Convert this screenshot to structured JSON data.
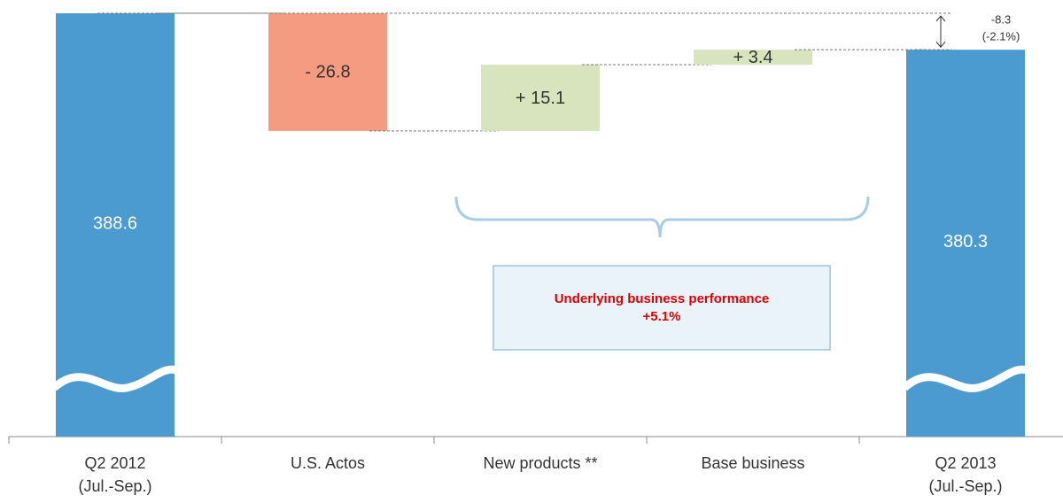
{
  "chart_data": {
    "type": "waterfall",
    "categories": [
      "Q2 2012\n(Jul.-Sep.)",
      "U.S. Actos",
      "New products **",
      "Base business",
      "Q2 2013\n(Jul.-Sep.)"
    ],
    "measures": [
      "total",
      "relative",
      "relative",
      "relative",
      "total"
    ],
    "values": [
      388.6,
      -26.8,
      15.1,
      3.4,
      380.3
    ],
    "value_labels": [
      "388.6",
      "- 26.8",
      "+ 15.1",
      "+ 3.4",
      "380.3"
    ],
    "colors": {
      "total": "#4b9bd0",
      "decrease": "#f49b82",
      "increase": "#d7e4bd"
    },
    "annotations": [
      "-8.3",
      "(-2.1%)"
    ],
    "callout": {
      "title": "Underlying business performance",
      "value": "+5.1%"
    }
  }
}
